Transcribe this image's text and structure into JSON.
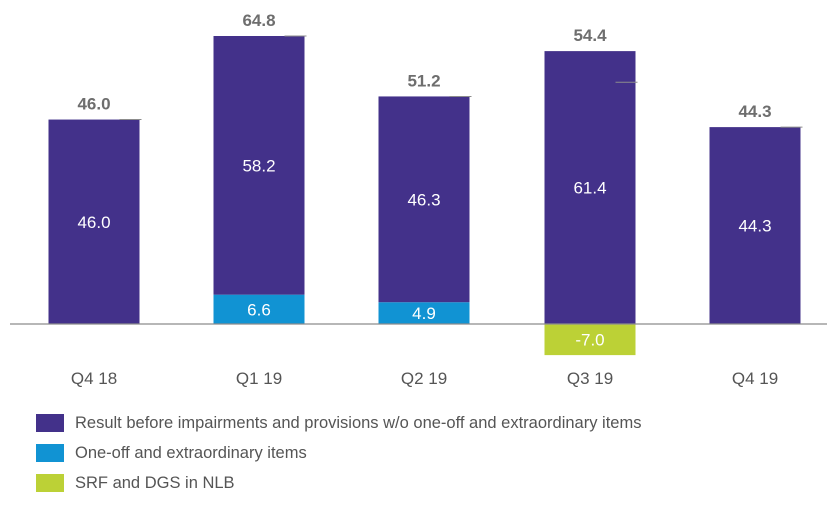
{
  "chart_data": {
    "type": "bar",
    "stacked": true,
    "categories": [
      "Q4 18",
      "Q1 19",
      "Q2 19",
      "Q3 19",
      "Q4 19"
    ],
    "series": [
      {
        "name": "Result before impairments and provisions w/o one-off and extraordinary items",
        "color": "#43318a",
        "values": [
          46.0,
          58.2,
          46.3,
          61.4,
          44.3
        ],
        "labels": [
          "46.0",
          "58.2",
          "46.3",
          "61.4",
          "44.3"
        ]
      },
      {
        "name": "One-off and extraordinary items",
        "color": "#1193d3",
        "values": [
          null,
          6.6,
          4.9,
          null,
          null
        ],
        "labels": [
          null,
          "6.6",
          "4.9",
          null,
          null
        ]
      },
      {
        "name": "SRF and DGS in NLB",
        "color": "#bcd136",
        "values": [
          null,
          null,
          null,
          -7.0,
          null
        ],
        "labels": [
          null,
          null,
          null,
          "-7.0",
          null
        ]
      }
    ],
    "totals": [
      46.0,
      64.8,
      51.2,
      54.4,
      44.3
    ],
    "total_labels": [
      "46.0",
      "64.8",
      "51.2",
      "54.4",
      "44.3"
    ],
    "legend_position": "bottom-left",
    "grid": false
  }
}
